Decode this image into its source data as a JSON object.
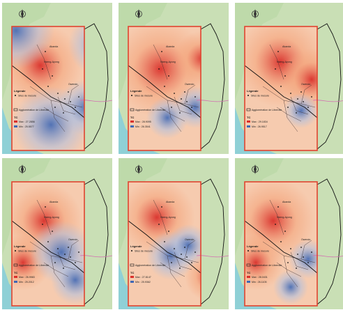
{
  "maps": [
    {
      "legend_title": "Légende",
      "sites_label": "Sites de mesure",
      "boundary_label": "Agglomération de Libreville",
      "variable_label": "TC",
      "scale_high": "Max : 27.2856",
      "scale_low": "Min : 25.5577",
      "town_labels": [
        "Nzeng-Ayong",
        "Owendo",
        "Akanda"
      ],
      "colors": {
        "hot": "#d9302b",
        "warm": "#f4a57c",
        "neutral": "#f7ecd9",
        "cool": "#aebfe0",
        "cold": "#3f68b5",
        "land": "#c9dfb5",
        "sea": "#8fd0d6"
      }
    },
    {
      "legend_title": "Légende",
      "sites_label": "Sites de mesure",
      "boundary_label": "Agglomération de Libreville",
      "variable_label": "TC",
      "scale_high": "Max : 28.9095",
      "scale_low": "Min : 26.3541",
      "town_labels": [
        "Nzeng-Ayong",
        "Owendo",
        "Akanda"
      ],
      "colors": {
        "hot": "#d9302b",
        "warm": "#f4a57c",
        "neutral": "#f7ecd9",
        "cool": "#aebfe0",
        "cold": "#3f68b5",
        "land": "#c9dfb5",
        "sea": "#8fd0d6"
      }
    },
    {
      "legend_title": "Légende",
      "sites_label": "Sites de mesure",
      "boundary_label": "Agglomération de Libreville",
      "variable_label": "TC",
      "scale_high": "Max : 29.1834",
      "scale_low": "Min : 26.9517",
      "town_labels": [
        "Nzeng-Ayong",
        "Owendo",
        "Akanda"
      ],
      "colors": {
        "hot": "#d9302b",
        "warm": "#f4a57c",
        "neutral": "#f7ecd9",
        "cool": "#aebfe0",
        "cold": "#3f68b5",
        "land": "#c9dfb5",
        "sea": "#8fd0d6"
      }
    },
    {
      "legend_title": "Légende",
      "sites_label": "Sites de mesure",
      "boundary_label": "Agglomération de Libreville",
      "variable_label": "TC",
      "scale_high": "Max : 26.9983",
      "scale_low": "Min : 25.2012",
      "town_labels": [
        "Nzeng-Ayong",
        "Owendo",
        "Akanda"
      ],
      "colors": {
        "hot": "#d9302b",
        "warm": "#f4a57c",
        "neutral": "#f7ecd9",
        "cool": "#aebfe0",
        "cold": "#3f68b5",
        "land": "#c9dfb5",
        "sea": "#8fd0d6"
      }
    },
    {
      "legend_title": "Légende",
      "sites_label": "Sites de mesure",
      "boundary_label": "Agglomération de Libreville",
      "variable_label": "TC",
      "scale_high": "Max : 27.8147",
      "scale_low": "Min : 25.9362",
      "town_labels": [
        "Nzeng-Ayong",
        "Owendo",
        "Akanda"
      ],
      "colors": {
        "hot": "#d9302b",
        "warm": "#f4a57c",
        "neutral": "#f7ecd9",
        "cool": "#aebfe0",
        "cold": "#3f68b5",
        "land": "#c9dfb5",
        "sea": "#8fd0d6"
      }
    },
    {
      "legend_title": "Légende",
      "sites_label": "Sites de mesure",
      "boundary_label": "Agglomération de Libreville",
      "variable_label": "TC",
      "scale_high": "Max : 28.0431",
      "scale_low": "Min : 26.1105",
      "town_labels": [
        "Nzeng-Ayong",
        "Owendo",
        "Akanda"
      ],
      "colors": {
        "hot": "#d9302b",
        "warm": "#f4a57c",
        "neutral": "#f7ecd9",
        "cool": "#aebfe0",
        "cold": "#3f68b5",
        "land": "#c9dfb5",
        "sea": "#8fd0d6"
      }
    }
  ]
}
